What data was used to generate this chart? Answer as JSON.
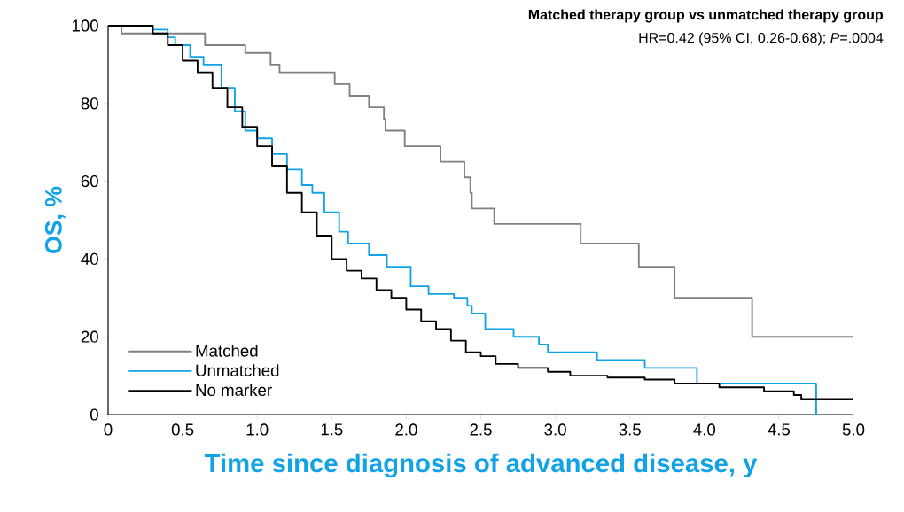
{
  "chart_data": {
    "type": "step",
    "title": "Matched therapy group vs unmatched therapy group",
    "subtitle": "HR=0.42 (95% CI, 0.26-0.68); *P*=.0004",
    "xlabel": "Time since diagnosis of advanced disease, y",
    "ylabel": "OS, %",
    "xlim": [
      0,
      5
    ],
    "ylim": [
      0,
      100
    ],
    "xticks": [
      0,
      0.5,
      {
        "value": 1,
        "label": "1.0"
      },
      1.5,
      {
        "value": 2,
        "label": "2.0"
      },
      2.5,
      {
        "value": 3,
        "label": "3.0"
      },
      3.5,
      {
        "value": 4,
        "label": "4.0"
      },
      4.5,
      {
        "value": 5,
        "label": "5.0"
      }
    ],
    "yticks": [
      0,
      20,
      40,
      60,
      80,
      100
    ],
    "legend": "bottom left",
    "marker": "none",
    "line_style": "solid",
    "series": [
      {
        "name": "Matched",
        "color": "#808080",
        "x": [
          0,
          0.09,
          0.65,
          0.92,
          1.09,
          1.15,
          1.52,
          1.62,
          1.75,
          1.85,
          1.86,
          1.99,
          2.23,
          2.39,
          2.43,
          2.44,
          2.59,
          3.17,
          3.56,
          3.8,
          4.32,
          5.0
        ],
        "values": [
          100,
          98,
          95,
          93,
          90,
          88,
          85,
          82,
          79,
          76,
          73,
          69,
          65,
          61,
          57,
          53,
          49,
          44,
          38,
          30,
          20,
          20
        ]
      },
      {
        "name": "Unmatched",
        "color": "#12a3e6",
        "x": [
          0,
          0.3,
          0.4,
          0.45,
          0.55,
          0.64,
          0.76,
          0.85,
          0.92,
          1.0,
          1.1,
          1.2,
          1.3,
          1.37,
          1.45,
          1.55,
          1.61,
          1.75,
          1.87,
          2.03,
          2.15,
          2.32,
          2.41,
          2.44,
          2.53,
          2.72,
          2.89,
          2.95,
          3.28,
          3.6,
          3.95,
          4.75
        ],
        "values": [
          100,
          99,
          97,
          95,
          92,
          90,
          84,
          78,
          73,
          71,
          67,
          63,
          59,
          57,
          52,
          47,
          44,
          41,
          38,
          33,
          31,
          30,
          28,
          26,
          22,
          20,
          18,
          16,
          14,
          12,
          8,
          0
        ]
      },
      {
        "name": "No marker",
        "color": "#000000",
        "x": [
          0,
          0.3,
          0.4,
          0.5,
          0.6,
          0.7,
          0.8,
          0.9,
          1.0,
          1.1,
          1.2,
          1.3,
          1.4,
          1.5,
          1.6,
          1.7,
          1.8,
          1.9,
          2.0,
          2.1,
          2.2,
          2.3,
          2.4,
          2.5,
          2.6,
          2.75,
          2.95,
          3.1,
          3.35,
          3.6,
          3.8,
          4.1,
          4.4,
          4.6,
          4.65,
          5.0
        ],
        "values": [
          100,
          98,
          95,
          91,
          88,
          84,
          79,
          74,
          69,
          64,
          57,
          52,
          46,
          40,
          37,
          35,
          32,
          30,
          27,
          24,
          22,
          19,
          16,
          15,
          13,
          12,
          11,
          10,
          9.5,
          9,
          8,
          7,
          6,
          5,
          4,
          4
        ]
      }
    ]
  }
}
